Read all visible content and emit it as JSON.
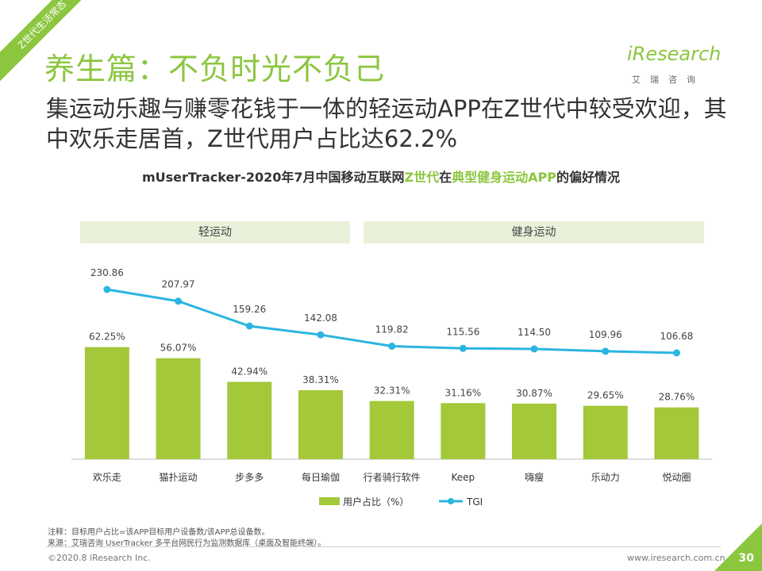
{
  "corner_tag": "Z世代生活常态",
  "section_title": "养生篇：不负时光不负己",
  "logo": {
    "word": "iResearch",
    "cn": "艾瑞咨询"
  },
  "headline": "集运动乐趣与赚零花钱于一体的轻运动APP在Z世代中较受欢迎，其中欢乐走居首，Z世代用户占比达62.2%",
  "chart_title": {
    "part1": "mUserTracker-2020年7月中国移动互联网",
    "hl1": "Z世代",
    "part2": "在",
    "hl2": "典型健身运动APP",
    "part3": "的偏好情况"
  },
  "groups": {
    "light": "轻运动",
    "fitness": "健身运动"
  },
  "chart_data": {
    "type": "bar",
    "categories": [
      "欢乐走",
      "猫扑运动",
      "步多多",
      "每日瑜伽",
      "行者骑行软件",
      "Keep",
      "嗨瘦",
      "乐动力",
      "悦动圈"
    ],
    "series": [
      {
        "name": "用户占比（%）",
        "type": "bar",
        "values": [
          62.25,
          56.07,
          42.94,
          38.31,
          32.31,
          31.16,
          30.87,
          29.65,
          28.76
        ],
        "labels": [
          "62.25%",
          "56.07%",
          "42.94%",
          "38.31%",
          "32.31%",
          "31.16%",
          "30.87%",
          "29.65%",
          "28.76%"
        ]
      },
      {
        "name": "TGI",
        "type": "line",
        "values": [
          230.86,
          207.97,
          159.26,
          142.08,
          119.82,
          115.56,
          114.5,
          109.96,
          106.68
        ],
        "labels": [
          "230.86",
          "207.97",
          "159.26",
          "142.08",
          "119.82",
          "115.56",
          "114.50",
          "109.96",
          "106.68"
        ]
      }
    ],
    "colors": {
      "bar": "#a3c839",
      "line": "#2bb5e0"
    },
    "legend": "bottom-center"
  },
  "notes": {
    "note": "注释：目标用户占比=该APP目标用户设备数/该APP总设备数。",
    "source": "来源：艾瑞咨询 UserTracker 多平台网民行为监测数据库（桌面及智能终端）。"
  },
  "footer": {
    "copyright": "©2020.8 iResearch Inc.",
    "website": "www.iresearch.com.cn",
    "page": "30"
  }
}
